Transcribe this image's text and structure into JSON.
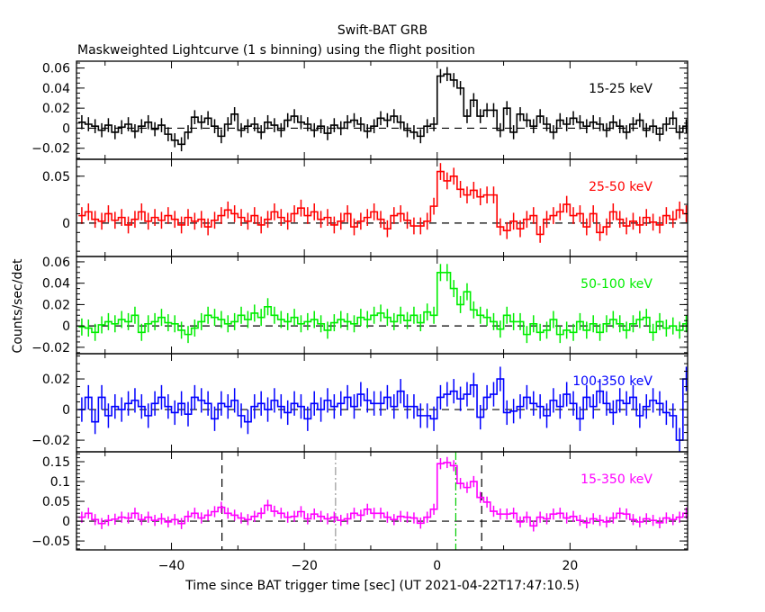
{
  "chart_data": {
    "type": "line",
    "title": "Swift-BAT GRB",
    "subtitle": "Maskweighted Lightcurve (1 s binning) using the flight position",
    "xlabel": "Time since BAT trigger time [sec] (UT 2021-04-22T17:47:10.5)",
    "ylabel": "Counts/sec/det",
    "xlim": [
      -54.3,
      37.7
    ],
    "x_ticks": [
      -40,
      -20,
      0,
      20
    ],
    "bin_start": -54,
    "bin_width": 1,
    "grid": false,
    "markers": [
      {
        "t": -32.4,
        "style": "dashed",
        "color": "#000000"
      },
      {
        "t": -15.3,
        "style": "dashdot",
        "color": "#999999"
      },
      {
        "t": 2.8,
        "style": "dashdot",
        "color": "#00cc00"
      },
      {
        "t": 6.7,
        "style": "dashed",
        "color": "#000000"
      }
    ],
    "series": [
      {
        "name": "15-25 keV",
        "color": "#000000",
        "ylim": [
          -0.031,
          0.0668
        ],
        "y_ticks": [
          -0.02,
          0,
          0.02,
          0.04,
          0.06
        ],
        "y_tick_labels": [
          "−0.02",
          "0",
          "0.02",
          "0.04",
          "0.06"
        ],
        "minor": 0.005,
        "err": 0.007,
        "values": [
          0.006,
          0.004,
          0.002,
          -0.002,
          0.003,
          -0.004,
          0.001,
          0.004,
          -0.003,
          0.002,
          0.006,
          -0.001,
          0.003,
          -0.006,
          -0.012,
          -0.016,
          -0.004,
          0.011,
          0.006,
          0.01,
          0.002,
          -0.008,
          0.004,
          0.014,
          -0.002,
          0.002,
          0.004,
          -0.004,
          0.006,
          0.003,
          -0.002,
          0.008,
          0.012,
          0.006,
          0.004,
          -0.002,
          0.002,
          -0.005,
          0.003,
          0,
          0.006,
          0.008,
          0.004,
          -0.003,
          0.002,
          0.01,
          0.008,
          0.012,
          0.006,
          -0.002,
          -0.004,
          -0.008,
          0.002,
          0.004,
          0.052,
          0.054,
          0.048,
          0.04,
          0.012,
          0.028,
          0.012,
          0.018,
          0.018,
          -0.002,
          0.02,
          -0.004,
          0.014,
          0.008,
          0.002,
          0.012,
          0.004,
          -0.004,
          0.008,
          0.004,
          0.01,
          0.006,
          0.002,
          0.006,
          0.004,
          -0.002,
          0.006,
          0.002,
          -0.004,
          0.004,
          0.008,
          -0.002,
          0.002,
          -0.006,
          0.004,
          0.01,
          -0.004,
          0.002
        ]
      },
      {
        "name": "25-50 keV",
        "color": "#ff0000",
        "ylim": [
          -0.0356,
          0.068
        ],
        "y_ticks": [
          0,
          0.05
        ],
        "y_tick_labels": [
          "0",
          "0.05"
        ],
        "minor": 0.01,
        "err": 0.009,
        "values": [
          0.008,
          0.012,
          0.004,
          0.002,
          0.01,
          0.003,
          0.006,
          -0.002,
          0.004,
          0.012,
          0.002,
          0.006,
          0.003,
          0.008,
          0.004,
          -0.002,
          0.006,
          0.002,
          0.004,
          -0.004,
          0.003,
          0.008,
          0.014,
          0.01,
          0.006,
          0.002,
          0.008,
          -0.002,
          0.004,
          0.012,
          0.006,
          0.002,
          0.01,
          0.016,
          0.008,
          0.012,
          0.004,
          0.006,
          -0.002,
          0.002,
          0.01,
          -0.004,
          0.002,
          0.006,
          0.012,
          0.004,
          -0.006,
          0.008,
          0.01,
          0.003,
          -0.003,
          -0.003,
          0.002,
          0.018,
          0.055,
          0.045,
          0.05,
          0.036,
          0.03,
          0.035,
          0.028,
          0.03,
          0.03,
          -0.004,
          -0.008,
          0.002,
          -0.006,
          0.004,
          0.008,
          -0.012,
          0.004,
          0.008,
          0.012,
          0.02,
          0.008,
          0.01,
          -0.004,
          0.01,
          -0.01,
          -0.004,
          0.012,
          0.004,
          -0.003,
          0.002,
          -0.002,
          0.006,
          0.001,
          -0.002,
          0.008,
          0.004,
          0.014,
          0.01
        ]
      },
      {
        "name": "50-100 keV",
        "color": "#00ee00",
        "ylim": [
          -0.026,
          0.065
        ],
        "y_ticks": [
          -0.02,
          0,
          0.02,
          0.04,
          0.06
        ],
        "y_tick_labels": [
          "−0.02",
          "0",
          "0.02",
          "0.04",
          "0.06"
        ],
        "minor": 0.005,
        "err": 0.008,
        "values": [
          -0.001,
          -0.002,
          -0.006,
          0.001,
          0.004,
          0.002,
          0.006,
          0.004,
          0.01,
          -0.006,
          0.002,
          0.004,
          0.008,
          0.003,
          0.002,
          -0.004,
          -0.008,
          -0.002,
          0.004,
          0.01,
          0.008,
          0.006,
          0.002,
          0.004,
          0.01,
          0.006,
          0.012,
          0.008,
          0.018,
          0.01,
          0.006,
          0.004,
          0.008,
          0.002,
          0.004,
          0.006,
          0.002,
          -0.004,
          0.003,
          0.006,
          0.004,
          0.002,
          0.008,
          0.006,
          0.01,
          0.012,
          0.008,
          0.004,
          0.01,
          0.005,
          0.01,
          0.003,
          0.013,
          0.01,
          0.05,
          0.05,
          0.035,
          0.02,
          0.032,
          0.015,
          0.01,
          0.008,
          0.004,
          -0.003,
          0.01,
          0.004,
          0.004,
          -0.008,
          0.002,
          -0.006,
          -0.004,
          0.006,
          -0.008,
          -0.004,
          -0.006,
          0.004,
          -0.004,
          0.002,
          -0.006,
          0.002,
          0.006,
          0.002,
          -0.004,
          0.002,
          0.006,
          0.008,
          -0.006,
          0.004,
          -0.002,
          0,
          -0.004,
          0.002
        ]
      },
      {
        "name": "100-350 keV",
        "color": "#0000ff",
        "ylim": [
          -0.0276,
          0.0365
        ],
        "y_ticks": [
          -0.02,
          0,
          0.02
        ],
        "y_tick_labels": [
          "−0.02",
          "0",
          "0.02"
        ],
        "minor": 0.005,
        "err": 0.008,
        "values": [
          0,
          0.008,
          -0.008,
          0.008,
          -0.004,
          0.002,
          0,
          0.004,
          0.006,
          0.002,
          -0.004,
          0.004,
          0.008,
          0.002,
          -0.002,
          0.004,
          -0.003,
          0.008,
          0.006,
          0.004,
          -0.006,
          0.004,
          0.002,
          0.006,
          -0.004,
          -0.008,
          0.002,
          0.004,
          0,
          0.006,
          0.002,
          -0.002,
          0.004,
          0.002,
          -0.006,
          0.004,
          0,
          0.006,
          0.002,
          0.004,
          0.008,
          0.002,
          0.01,
          0.006,
          0.004,
          0.004,
          0.008,
          0.002,
          0.012,
          0.002,
          0.002,
          -0.004,
          -0.004,
          -0.006,
          0.008,
          0.01,
          0.012,
          0.007,
          0.01,
          0.016,
          -0.005,
          0.008,
          0.01,
          0.02,
          -0.002,
          -0.001,
          0.002,
          0.008,
          0.004,
          0.002,
          -0.004,
          0.006,
          0.002,
          0.01,
          0.004,
          -0.006,
          0.008,
          0.002,
          0.012,
          0.004,
          -0.002,
          0.006,
          0.004,
          0.008,
          -0.004,
          0.002,
          0.006,
          0.004,
          -0.002,
          -0.004,
          -0.02,
          0.02
        ]
      },
      {
        "name": "15-350 keV",
        "color": "#ff00ff",
        "ylim": [
          -0.0725,
          0.175
        ],
        "y_ticks": [
          -0.05,
          0,
          0.05,
          0.1,
          0.15
        ],
        "y_tick_labels": [
          "−0.05",
          "0",
          "0.05",
          "0.1",
          "0.15"
        ],
        "minor": 0.01,
        "err": 0.014,
        "values": [
          0.01,
          0.02,
          0.004,
          -0.006,
          0.002,
          0.005,
          0.01,
          0.008,
          0.02,
          0.004,
          0.01,
          0.002,
          0.006,
          -0.002,
          0.004,
          -0.006,
          0.012,
          0.02,
          0.008,
          0.015,
          0.024,
          0.035,
          0.02,
          0.015,
          0.008,
          0.004,
          0.012,
          0.02,
          0.04,
          0.025,
          0.02,
          0.01,
          0.012,
          0.024,
          0.006,
          0.018,
          0.012,
          0.006,
          0.01,
          0.002,
          0.006,
          0.02,
          0.015,
          0.03,
          0.02,
          0.02,
          0.01,
          0.004,
          0.012,
          0.01,
          0.008,
          -0.005,
          0.01,
          0.03,
          0.145,
          0.148,
          0.14,
          0.095,
          0.085,
          0.1,
          0.06,
          0.048,
          0.025,
          0.018,
          0.018,
          0.02,
          -0.002,
          0.01,
          -0.012,
          0.01,
          0.006,
          0.018,
          0.02,
          0.008,
          0.012,
          0.002,
          -0.004,
          0.006,
          0.002,
          -0.002,
          0.008,
          0.02,
          0.018,
          0.004,
          -0.002,
          0.006,
          0.002,
          -0.004,
          0.008,
          0.004,
          0.01,
          0.02
        ]
      }
    ]
  }
}
